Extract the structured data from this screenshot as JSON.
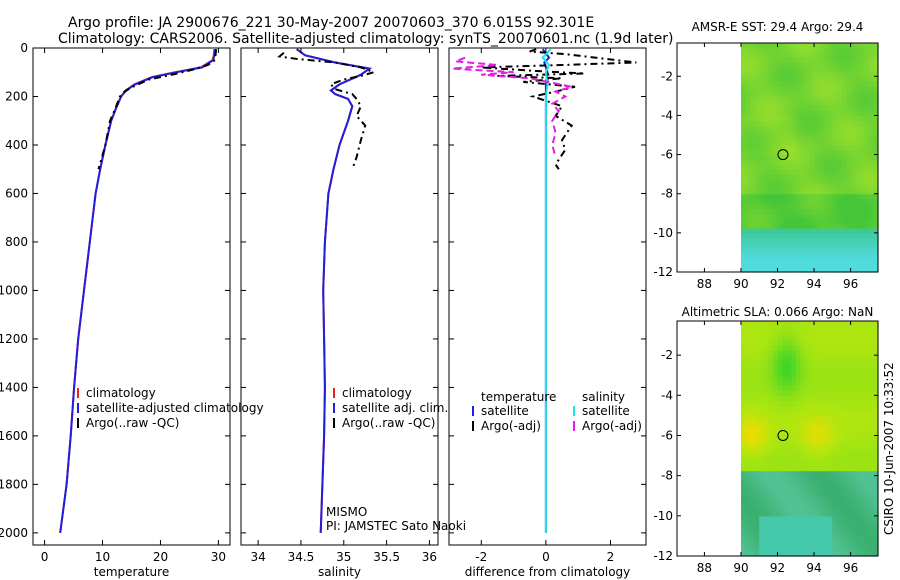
{
  "header": {
    "line1": "Argo profile: JA 2900676_221 30-May-2007 20070603_370 6.015S 92.301E",
    "line2": "Climatology: CARS2006. Satellite-adjusted climatology: synTS_20070601.nc (1.9d later)"
  },
  "side_label": "CSIRO 10-Jun-2007 10:33:52",
  "colors": {
    "climatology": "#e8231f",
    "satellite": "#1f1fe0",
    "argo": "#000000",
    "sat_salinity": "#19e6e6",
    "argo_salinity": "#e619e6"
  },
  "chart_data": [
    {
      "id": "temperature",
      "type": "line",
      "xlabel": "temperature",
      "ylabel": "",
      "xlim": [
        -2,
        32
      ],
      "ylim": [
        2050,
        0
      ],
      "xticks": [
        0,
        10,
        20,
        30
      ],
      "yticks": [
        0,
        200,
        400,
        600,
        800,
        1000,
        1200,
        1400,
        1600,
        1800,
        2000
      ],
      "legend": [
        "climatology",
        "satellite-adjusted climatology",
        "Argo(..raw -QC)"
      ],
      "series": [
        {
          "name": "climatology",
          "color": "#e8231f",
          "dash": "",
          "points": [
            [
              29.3,
              5
            ],
            [
              29.2,
              30
            ],
            [
              29.0,
              50
            ],
            [
              27.0,
              80
            ],
            [
              22.5,
              100
            ],
            [
              18.5,
              120
            ],
            [
              15.5,
              150
            ],
            [
              14.0,
              175
            ],
            [
              13.2,
              200
            ],
            [
              12.3,
              250
            ],
            [
              11.5,
              300
            ],
            [
              10.5,
              400
            ],
            [
              9.6,
              500
            ],
            [
              8.8,
              600
            ],
            [
              7.8,
              800
            ],
            [
              6.8,
              1000
            ],
            [
              5.8,
              1200
            ],
            [
              5.1,
              1400
            ],
            [
              4.5,
              1600
            ],
            [
              3.8,
              1800
            ],
            [
              2.7,
              2000
            ]
          ]
        },
        {
          "name": "satellite-adjusted climatology",
          "color": "#1f1fe0",
          "dash": "",
          "points": [
            [
              29.4,
              5
            ],
            [
              29.3,
              30
            ],
            [
              29.1,
              50
            ],
            [
              27.2,
              80
            ],
            [
              22.8,
              100
            ],
            [
              18.7,
              120
            ],
            [
              15.6,
              150
            ],
            [
              14.1,
              175
            ],
            [
              13.2,
              200
            ],
            [
              12.3,
              250
            ],
            [
              11.5,
              300
            ],
            [
              10.5,
              400
            ],
            [
              9.6,
              500
            ],
            [
              8.8,
              600
            ],
            [
              7.8,
              800
            ],
            [
              6.8,
              1000
            ],
            [
              5.8,
              1200
            ],
            [
              5.1,
              1400
            ],
            [
              4.5,
              1600
            ],
            [
              3.8,
              1800
            ],
            [
              2.7,
              2000
            ]
          ]
        },
        {
          "name": "Argo(..raw -QC)",
          "color": "#000000",
          "dash": "7,4,2,4",
          "points": [
            [
              29.6,
              5
            ],
            [
              29.5,
              30
            ],
            [
              29.4,
              50
            ],
            [
              28.2,
              70
            ],
            [
              25.5,
              90
            ],
            [
              22.0,
              110
            ],
            [
              18.0,
              130
            ],
            [
              15.2,
              160
            ],
            [
              13.8,
              180
            ],
            [
              13.0,
              200
            ],
            [
              12.2,
              250
            ],
            [
              11.3,
              300
            ],
            [
              10.5,
              400
            ],
            [
              9.3,
              500
            ]
          ]
        }
      ]
    },
    {
      "id": "salinity",
      "type": "line",
      "xlabel": "salinity",
      "ylabel": "",
      "xlim": [
        33.8,
        36.1
      ],
      "ylim": [
        2050,
        0
      ],
      "xticks": [
        34,
        34.5,
        35,
        35.5,
        36
      ],
      "yticks": [
        0,
        200,
        400,
        600,
        800,
        1000,
        1200,
        1400,
        1600,
        1800,
        2000
      ],
      "legend": [
        "climatology",
        "satellite adj. clim.",
        "Argo(..raw -QC)"
      ],
      "annotations": [
        "MISMO",
        "PI: JAMSTEC Sato Naoki"
      ],
      "series": [
        {
          "name": "climatology",
          "color": "#e8231f",
          "dash": "",
          "points": [
            [
              34.45,
              5
            ],
            [
              34.55,
              30
            ],
            [
              34.9,
              60
            ],
            [
              35.3,
              85
            ],
            [
              35.2,
              110
            ],
            [
              34.95,
              150
            ],
            [
              34.85,
              175
            ],
            [
              34.9,
              190
            ],
            [
              35.05,
              210
            ],
            [
              35.1,
              240
            ],
            [
              35.05,
              300
            ],
            [
              34.95,
              400
            ],
            [
              34.88,
              500
            ],
            [
              34.82,
              600
            ],
            [
              34.78,
              800
            ],
            [
              34.76,
              1000
            ],
            [
              34.77,
              1200
            ],
            [
              34.78,
              1400
            ],
            [
              34.77,
              1600
            ],
            [
              34.75,
              1800
            ],
            [
              34.73,
              2000
            ]
          ]
        },
        {
          "name": "satellite adj. clim.",
          "color": "#1f1fe0",
          "dash": "",
          "points": [
            [
              34.45,
              5
            ],
            [
              34.55,
              30
            ],
            [
              34.9,
              60
            ],
            [
              35.3,
              85
            ],
            [
              35.2,
              110
            ],
            [
              34.95,
              150
            ],
            [
              34.85,
              175
            ],
            [
              34.9,
              190
            ],
            [
              35.05,
              210
            ],
            [
              35.1,
              240
            ],
            [
              35.05,
              300
            ],
            [
              34.95,
              400
            ],
            [
              34.88,
              500
            ],
            [
              34.82,
              600
            ],
            [
              34.78,
              800
            ],
            [
              34.76,
              1000
            ],
            [
              34.77,
              1200
            ],
            [
              34.78,
              1400
            ],
            [
              34.77,
              1600
            ],
            [
              34.75,
              1800
            ],
            [
              34.73,
              2000
            ]
          ]
        },
        {
          "name": "Argo(..raw -QC)",
          "color": "#000000",
          "dash": "7,4,2,4",
          "points": [
            [
              34.3,
              20
            ],
            [
              34.25,
              35
            ],
            [
              34.45,
              45
            ],
            [
              34.9,
              60
            ],
            [
              35.2,
              80
            ],
            [
              35.35,
              100
            ],
            [
              35.2,
              115
            ],
            [
              35.0,
              130
            ],
            [
              34.85,
              150
            ],
            [
              34.9,
              170
            ],
            [
              35.1,
              190
            ],
            [
              35.15,
              210
            ],
            [
              35.2,
              240
            ],
            [
              35.15,
              280
            ],
            [
              35.25,
              320
            ],
            [
              35.2,
              380
            ],
            [
              35.15,
              450
            ],
            [
              35.1,
              500
            ]
          ]
        }
      ]
    },
    {
      "id": "difference",
      "type": "line",
      "xlabel": "difference from climatology",
      "ylabel": "",
      "xlim": [
        -3,
        3.1
      ],
      "ylim": [
        2050,
        0
      ],
      "xticks": [
        -2,
        0,
        2
      ],
      "yticks": [
        0,
        200,
        400,
        600,
        800,
        1000,
        1200,
        1400,
        1600,
        1800,
        2000
      ],
      "legend_headers": [
        "temperature",
        "salinity"
      ],
      "legend": [
        "satellite",
        "Argo(-adj)",
        "satellite",
        "Argo(-adj)"
      ],
      "series": [
        {
          "name": "temperature satellite",
          "color": "#1f1fe0",
          "dash": "",
          "points": [
            [
              -0.1,
              5
            ],
            [
              0.1,
              40
            ],
            [
              -0.05,
              60
            ],
            [
              0.05,
              100
            ],
            [
              0,
              150
            ],
            [
              0,
              200
            ],
            [
              0,
              400
            ],
            [
              0,
              1000
            ],
            [
              0,
              1500
            ],
            [
              0,
              2000
            ]
          ]
        },
        {
          "name": "temperature Argo(-adj)",
          "color": "#000000",
          "dash": "7,4,2,4",
          "points": [
            [
              -0.3,
              5
            ],
            [
              -0.5,
              15
            ],
            [
              0.6,
              25
            ],
            [
              2.8,
              60
            ],
            [
              0.5,
              70
            ],
            [
              -2.0,
              80
            ],
            [
              -0.3,
              95
            ],
            [
              1.2,
              105
            ],
            [
              -1.5,
              115
            ],
            [
              0.5,
              125
            ],
            [
              -0.7,
              140
            ],
            [
              0.9,
              160
            ],
            [
              0.3,
              180
            ],
            [
              -0.4,
              200
            ],
            [
              0.5,
              240
            ],
            [
              0.3,
              280
            ],
            [
              0.8,
              320
            ],
            [
              0.5,
              380
            ],
            [
              0.6,
              420
            ],
            [
              0.3,
              480
            ],
            [
              0.4,
              500
            ]
          ]
        },
        {
          "name": "salinity satellite",
          "color": "#19e6e6",
          "dash": "",
          "points": [
            [
              0.15,
              5
            ],
            [
              -0.1,
              40
            ],
            [
              0.1,
              70
            ],
            [
              0,
              100
            ],
            [
              0.05,
              150
            ],
            [
              0,
              200
            ],
            [
              0,
              400
            ],
            [
              0,
              1000
            ],
            [
              0,
              1500
            ],
            [
              0,
              2000
            ]
          ]
        },
        {
          "name": "salinity Argo(-adj)",
          "color": "#e619e6",
          "dash": "7,4",
          "points": [
            [
              -2.5,
              40
            ],
            [
              -2.8,
              55
            ],
            [
              -1.5,
              70
            ],
            [
              -2.9,
              85
            ],
            [
              -1.0,
              100
            ],
            [
              -2.0,
              110
            ],
            [
              -0.5,
              125
            ],
            [
              0.8,
              160
            ],
            [
              0.3,
              180
            ],
            [
              0.6,
              200
            ],
            [
              0.2,
              230
            ],
            [
              0.4,
              260
            ],
            [
              0.2,
              300
            ],
            [
              0.3,
              350
            ],
            [
              0.2,
              400
            ],
            [
              0.3,
              450
            ]
          ]
        }
      ]
    }
  ],
  "maps": [
    {
      "id": "sst",
      "title": "AMSR-E SST: 29.4  Argo: 29.4",
      "type": "heatmap",
      "xlim": [
        86.5,
        97.5
      ],
      "ylim": [
        -12,
        -0.3
      ],
      "xticks": [
        88,
        90,
        92,
        94,
        96
      ],
      "yticks": [
        -2,
        -4,
        -6,
        -8,
        -10,
        -12
      ],
      "marker": {
        "lon": 92.3,
        "lat": -6.0
      }
    },
    {
      "id": "sla",
      "title": "Altimetric SLA: 0.066  Argo: NaN",
      "type": "heatmap",
      "xlim": [
        86.5,
        97.5
      ],
      "ylim": [
        -12,
        -0.3
      ],
      "xticks": [
        88,
        90,
        92,
        94,
        96
      ],
      "yticks": [
        -2,
        -4,
        -6,
        -8,
        -10,
        -12
      ],
      "marker": {
        "lon": 92.3,
        "lat": -6.0
      }
    }
  ]
}
